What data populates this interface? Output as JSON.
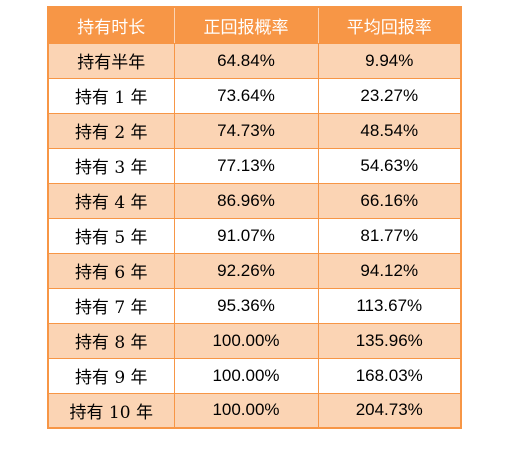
{
  "table": {
    "headers": [
      "持有时长",
      "正回报概率",
      "平均回报率"
    ],
    "rows": [
      {
        "period": "持有半年",
        "positive_prob": "64.84%",
        "avg_return": "9.94%"
      },
      {
        "period": "持有 1 年",
        "positive_prob": "73.64%",
        "avg_return": "23.27%"
      },
      {
        "period": "持有 2 年",
        "positive_prob": "74.73%",
        "avg_return": "48.54%"
      },
      {
        "period": "持有 3 年",
        "positive_prob": "77.13%",
        "avg_return": "54.63%"
      },
      {
        "period": "持有 4 年",
        "positive_prob": "86.96%",
        "avg_return": "66.16%"
      },
      {
        "period": "持有 5 年",
        "positive_prob": "91.07%",
        "avg_return": "81.77%"
      },
      {
        "period": "持有 6 年",
        "positive_prob": "92.26%",
        "avg_return": "94.12%"
      },
      {
        "period": "持有 7 年",
        "positive_prob": "95.36%",
        "avg_return": "113.67%"
      },
      {
        "period": "持有 8 年",
        "positive_prob": "100.00%",
        "avg_return": "135.96%"
      },
      {
        "period": "持有 9 年",
        "positive_prob": "100.00%",
        "avg_return": "168.03%"
      },
      {
        "period": "持有 10 年",
        "positive_prob": "100.00%",
        "avg_return": "204.73%"
      }
    ]
  },
  "colors": {
    "header_bg": "#f79646",
    "header_text": "#ffffff",
    "band_light": "#fbd4b4",
    "band_white": "#ffffff",
    "border": "#f79646"
  }
}
